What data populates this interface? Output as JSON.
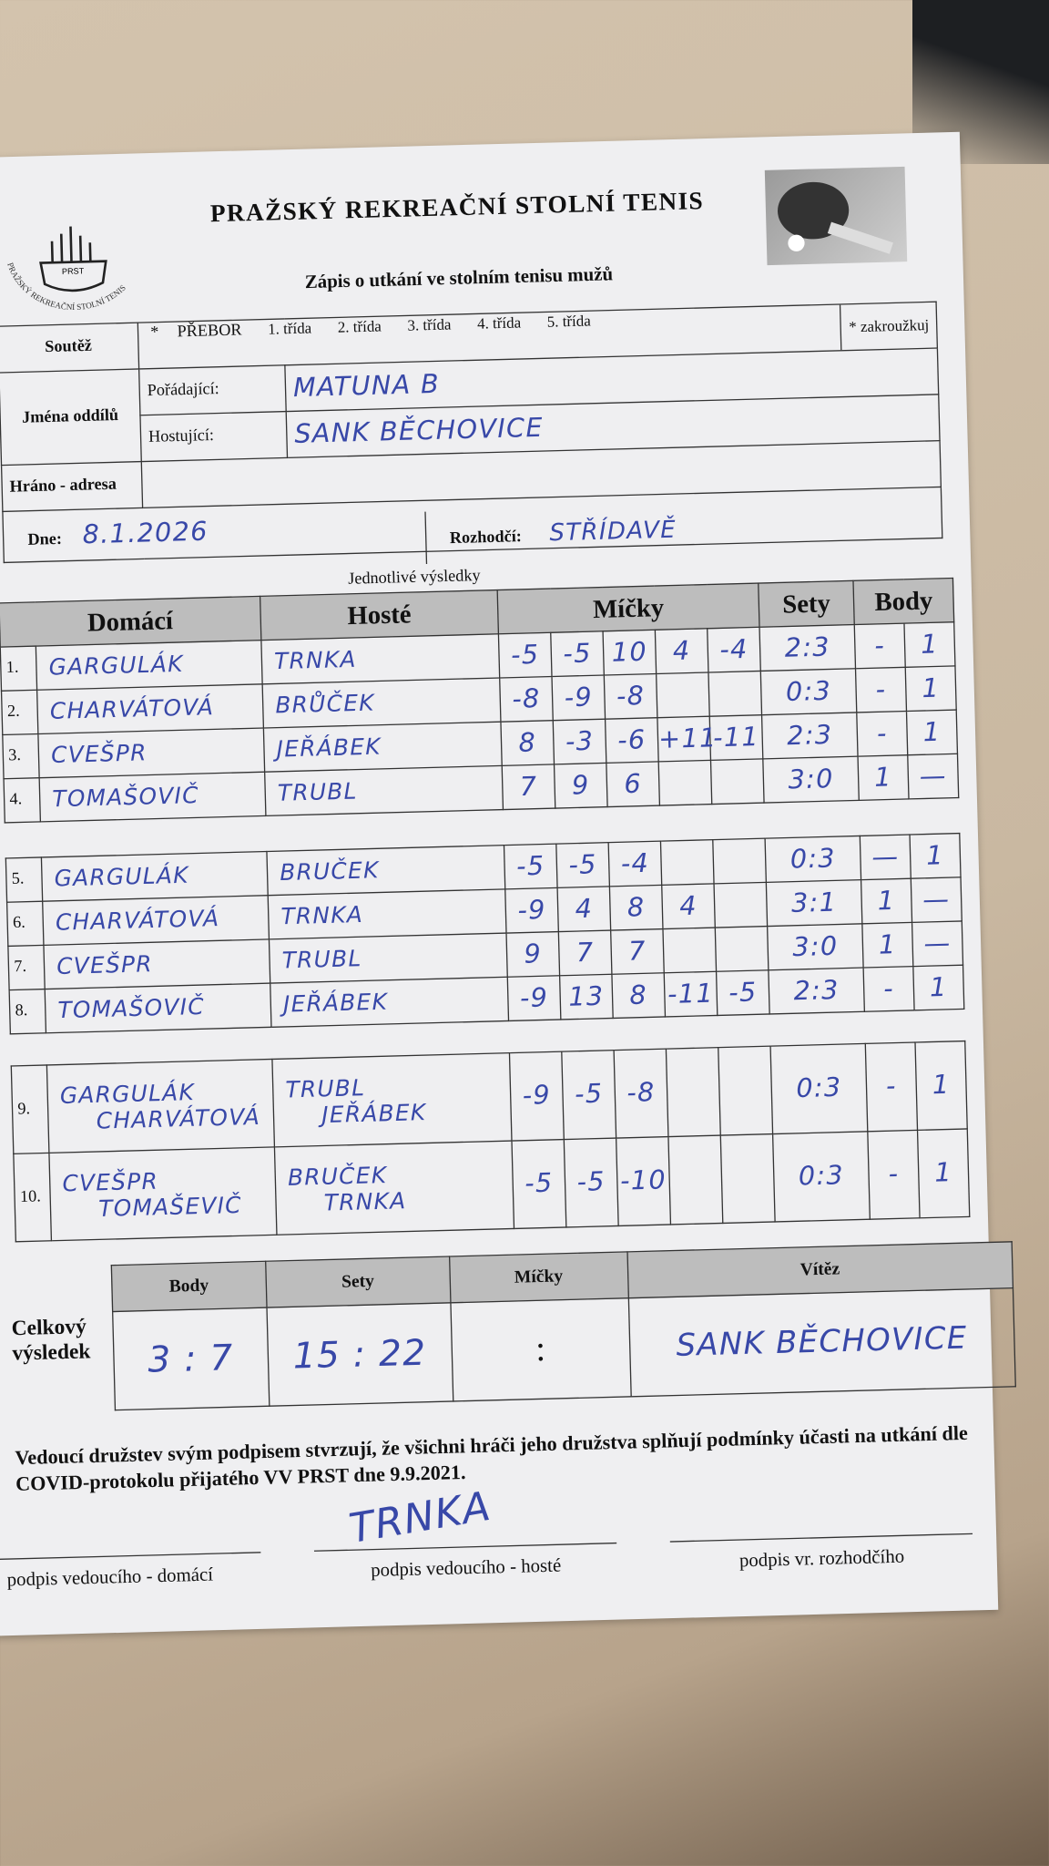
{
  "logo": {
    "ring": "PRAŽSKÝ REKREAČNÍ STOLNÍ TENIS",
    "label": "PRST"
  },
  "header": {
    "title": "PRAŽSKÝ REKREAČNÍ STOLNÍ TENIS",
    "subtitle": "Zápis o utkání ve stolním tenisu mužů"
  },
  "form": {
    "competition_label": "Soutěž",
    "bullet": "*",
    "options": [
      "PŘEBOR",
      "1. třída",
      "2. třída",
      "3. třída",
      "4. třída",
      "5. třída"
    ],
    "note": "* zakroužkuj",
    "clubs_label": "Jména oddílů",
    "home_label": "Pořádající:",
    "home_value": "MATUNA B",
    "guest_label": "Hostující:",
    "guest_value": "SANK BĚCHOVICE",
    "address_label": "Hráno - adresa",
    "date_label": "Dne:",
    "date_value": "8.1.2026",
    "referee_label": "Rozhodčí:",
    "referee_value": "STŘÍDAVĚ"
  },
  "results": {
    "caption": "Jednotlivé výsledky",
    "headers": [
      "Domácí",
      "Hosté",
      "Míčky",
      "Sety",
      "Body"
    ],
    "rows": [
      {
        "no": "1.",
        "home": [
          "GARGULÁK"
        ],
        "guest": [
          "TRNKA"
        ],
        "balls": [
          "-5",
          "-5",
          "10",
          "4",
          "-4"
        ],
        "sets": "2:3",
        "points": [
          "-",
          "1"
        ]
      },
      {
        "no": "2.",
        "home": [
          "CHARVÁTOVÁ"
        ],
        "guest": [
          "BRŮČEK"
        ],
        "balls": [
          "-8",
          "-9",
          "-8"
        ],
        "sets": "0:3",
        "points": [
          "-",
          "1"
        ]
      },
      {
        "no": "3.",
        "home": [
          "CVEŠPR"
        ],
        "guest": [
          "JEŘÁBEK"
        ],
        "balls": [
          "8",
          "-3",
          "-6",
          "+11",
          "-11"
        ],
        "sets": "2:3",
        "points": [
          "-",
          "1"
        ]
      },
      {
        "no": "4.",
        "home": [
          "TOMAŠOVIČ"
        ],
        "guest": [
          "TRUBL"
        ],
        "balls": [
          "7",
          "9",
          "6"
        ],
        "sets": "3:0",
        "points": [
          "1",
          "—"
        ]
      },
      {
        "no": "5.",
        "home": [
          "GARGULÁK"
        ],
        "guest": [
          "BRUČEK"
        ],
        "balls": [
          "-5",
          "-5",
          "-4"
        ],
        "sets": "0:3",
        "points": [
          "—",
          "1"
        ]
      },
      {
        "no": "6.",
        "home": [
          "CHARVÁTOVÁ"
        ],
        "guest": [
          "TRNKA"
        ],
        "balls": [
          "-9",
          "4",
          "8",
          "4"
        ],
        "sets": "3:1",
        "points": [
          "1",
          "—"
        ]
      },
      {
        "no": "7.",
        "home": [
          "CVEŠPR"
        ],
        "guest": [
          "TRUBL"
        ],
        "balls": [
          "9",
          "7",
          "7"
        ],
        "sets": "3:0",
        "points": [
          "1",
          "—"
        ]
      },
      {
        "no": "8.",
        "home": [
          "TOMAŠOVIČ"
        ],
        "guest": [
          "JEŘÁBEK"
        ],
        "balls": [
          "-9",
          "13",
          "8",
          "-11",
          "-5"
        ],
        "sets": "2:3",
        "points": [
          "-",
          "1"
        ]
      },
      {
        "no": "9.",
        "home": [
          "GARGULÁK",
          "CHARVÁTOVÁ"
        ],
        "guest": [
          "TRUBL",
          "JEŘÁBEK"
        ],
        "balls": [
          "-9",
          "-5",
          "-8"
        ],
        "sets": "0:3",
        "points": [
          "-",
          "1"
        ]
      },
      {
        "no": "10.",
        "home": [
          "CVEŠPR",
          "TOMAŠEVIČ"
        ],
        "guest": [
          "BRUČEK",
          "TRNKA"
        ],
        "balls": [
          "-5",
          "-5",
          "-10"
        ],
        "sets": "0:3",
        "points": [
          "-",
          "1"
        ]
      }
    ]
  },
  "totals": {
    "label": "Celkový výsledek",
    "headers": [
      "Body",
      "Sety",
      "Míčky",
      "Vítěz"
    ],
    "values": [
      "3 : 7",
      "15 : 22",
      ":",
      "SANK BĚCHOVICE"
    ]
  },
  "statement": "Vedoucí družstev svým podpisem stvrzují, že všichni hráči jeho družstva splňují podmínky účasti na utkání dle COVID-protokolu přijatého VV PRST dne 9.9.2021.",
  "signatures": {
    "guest_signature": "TRNKA",
    "labels": [
      "podpis vedoucího - domácí",
      "podpis vedoucího - hosté",
      "podpis vr. rozhodčího"
    ]
  }
}
